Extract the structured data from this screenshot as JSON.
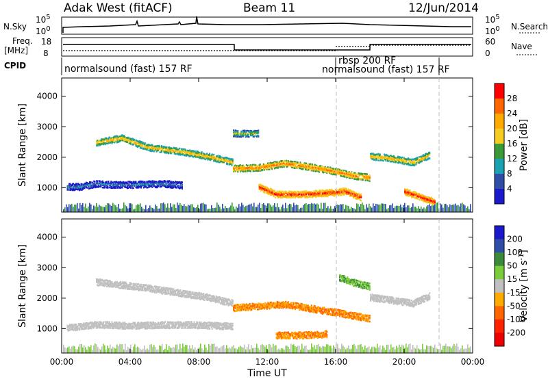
{
  "header": {
    "radar": "Adak West (fitACF)",
    "beam": "Beam 11",
    "date": "12/Jun/2014"
  },
  "panels": {
    "nsky_label": "N.Sky",
    "nsky_ticks": [
      "10^5",
      "10^0"
    ],
    "nsearch_label": "N.Search",
    "nsearch_ticks": [
      "10^5",
      "10^0"
    ],
    "freq_label": "Freq.",
    "freq_unit": "[MHz]",
    "freq_ticks": [
      "18",
      "8"
    ],
    "nave_label": "Nave",
    "nave_ticks": [
      "60",
      "0"
    ],
    "cpid_label": "CPID",
    "cpid_modes": [
      {
        "text": "normalsound (fast) 157 RF",
        "start_h": 0.1
      },
      {
        "text": "rbsp 200 RF",
        "start_h": 16.05
      },
      {
        "text": "normalsound (fast) 157 RF",
        "start_h": 16.05
      }
    ]
  },
  "power_colorbar": {
    "label": "Power [dB]",
    "ticks": [
      "28",
      "24",
      "20",
      "16",
      "12",
      "8",
      "4"
    ],
    "colors": [
      "#ff0000",
      "#ff6600",
      "#ffaa00",
      "#f5cc22",
      "#3a9a3a",
      "#1aa2b0",
      "#2e4ea8",
      "#1a1acc"
    ]
  },
  "velocity_colorbar": {
    "label": "Velocity [m s^-1]",
    "ticks": [
      "200",
      "100",
      "50",
      "15",
      "-15",
      "-50",
      "-100",
      "-200"
    ],
    "colors": [
      "#1a1acc",
      "#2e4ea8",
      "#3a8a3a",
      "#7acc3a",
      "#c0c0c0",
      "#ffaa00",
      "#ff6600",
      "#ff2200",
      "#ee0000"
    ]
  },
  "chart_data": [
    {
      "type": "heatmap",
      "title": "",
      "ylabel": "Slant Range [km]",
      "xlabel": "Time UT",
      "xlim": [
        0,
        24
      ],
      "ylim": [
        200,
        4600
      ],
      "yticks": [
        1000,
        2000,
        3000,
        4000
      ],
      "xticks": [
        "00:00",
        "04:00",
        "08:00",
        "12:00",
        "16:00",
        "20:00",
        "00:00"
      ],
      "colorbar": "Power [dB]",
      "echo_bands": [
        {
          "t": [
            0.3,
            1.0,
            2.0,
            3.0,
            4.0,
            6.0,
            7.0
          ],
          "range": [
            1050,
            1050,
            1150,
            1120,
            1120,
            1150,
            1100
          ],
          "power_db": 8
        },
        {
          "t": [
            2.0,
            3.5,
            5.0,
            7.0,
            8.5,
            10.0
          ],
          "range": [
            2500,
            2650,
            2350,
            2200,
            2050,
            1850
          ],
          "power_db": 20
        },
        {
          "t": [
            10.0,
            11.5,
            13.0,
            14.5,
            16.0,
            17.0,
            18.0
          ],
          "range": [
            1650,
            1680,
            1820,
            1700,
            1550,
            1420,
            1350
          ],
          "power_db": 24
        },
        {
          "t": [
            11.5,
            12.5,
            14.0,
            15.5,
            16.5,
            17.5
          ],
          "range": [
            1050,
            800,
            800,
            850,
            900,
            700
          ],
          "power_db": 28
        },
        {
          "t": [
            10.0,
            10.8,
            11.5
          ],
          "range": [
            2800,
            2800,
            2800
          ],
          "power_db": 16
        },
        {
          "t": [
            18.0,
            19.0,
            20.5,
            21.5
          ],
          "range": [
            2050,
            2000,
            1850,
            2100
          ],
          "power_db": 20
        },
        {
          "t": [
            20.0,
            21.0,
            21.8
          ],
          "range": [
            900,
            700,
            550
          ],
          "power_db": 28
        }
      ]
    },
    {
      "type": "heatmap",
      "title": "",
      "ylabel": "Slant Range [km]",
      "xlabel": "Time UT",
      "xlim": [
        0,
        24
      ],
      "ylim": [
        200,
        4600
      ],
      "yticks": [
        1000,
        2000,
        3000,
        4000
      ],
      "xticks": [
        "00:00",
        "04:00",
        "08:00",
        "12:00",
        "16:00",
        "20:00",
        "00:00"
      ],
      "colorbar": "Velocity [m s^-1]",
      "echo_bands": [
        {
          "t": [
            0.3,
            2.0,
            4.0,
            7.0,
            10.0
          ],
          "range": [
            1050,
            1150,
            1120,
            1150,
            1100
          ],
          "velocity": 0
        },
        {
          "t": [
            2.0,
            5.0,
            8.5,
            10.0
          ],
          "range": [
            2550,
            2350,
            2050,
            1850
          ],
          "velocity": 0
        },
        {
          "t": [
            10.0,
            13.0,
            16.0,
            18.0
          ],
          "range": [
            1700,
            1820,
            1550,
            1350
          ],
          "velocity": -50
        },
        {
          "t": [
            12.5,
            14.0,
            15.5
          ],
          "range": [
            800,
            800,
            850
          ],
          "velocity": -50
        },
        {
          "t": [
            16.2,
            17.2,
            18.0
          ],
          "range": [
            2700,
            2500,
            2400
          ],
          "velocity": 30
        },
        {
          "t": [
            18.0,
            20.5,
            21.5
          ],
          "range": [
            2050,
            1850,
            2100
          ],
          "velocity": 0
        }
      ]
    }
  ]
}
